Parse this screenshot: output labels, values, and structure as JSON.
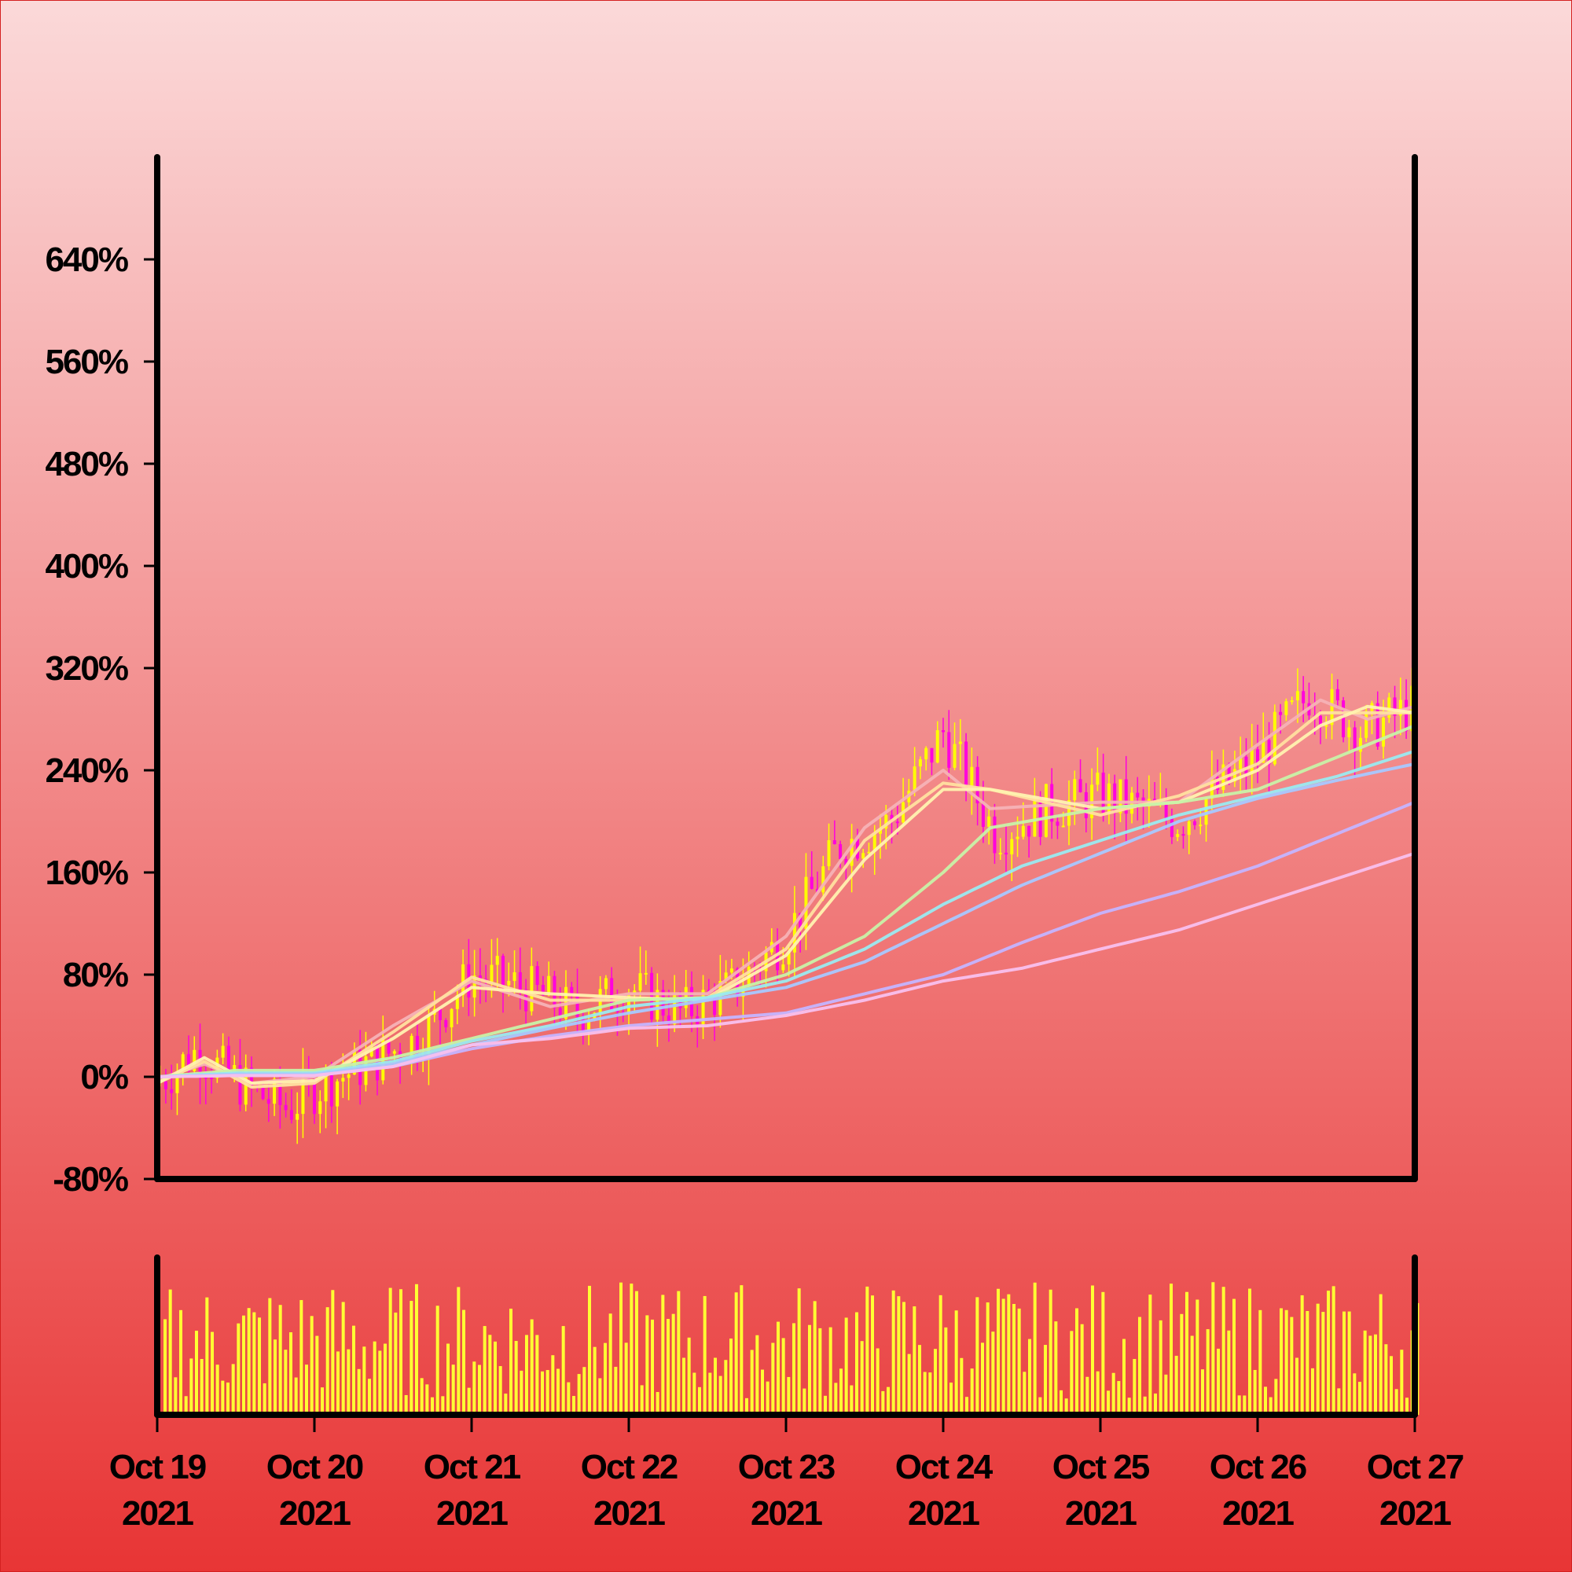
{
  "chart_data": {
    "type": "candlestick",
    "title": "",
    "xlabel": "",
    "ylabel": "",
    "y_unit": "%",
    "ylim": [
      -80,
      720
    ],
    "y_ticks": [
      "-80%",
      "0%",
      "80%",
      "160%",
      "240%",
      "320%",
      "400%",
      "480%",
      "560%",
      "640%"
    ],
    "y_tick_values": [
      -80,
      0,
      80,
      160,
      240,
      320,
      400,
      480,
      560,
      640
    ],
    "x_range": [
      "2021-10-19",
      "2021-10-27"
    ],
    "x_ticks": [
      {
        "date": "2021-10-19",
        "line1": "Oct 19",
        "line2": "2021"
      },
      {
        "date": "2021-10-20",
        "line1": "Oct 20",
        "line2": "2021"
      },
      {
        "date": "2021-10-21",
        "line1": "Oct 21",
        "line2": "2021"
      },
      {
        "date": "2021-10-22",
        "line1": "Oct 22",
        "line2": "2021"
      },
      {
        "date": "2021-10-23",
        "line1": "Oct 23",
        "line2": "2021"
      },
      {
        "date": "2021-10-24",
        "line1": "Oct 24",
        "line2": "2021"
      },
      {
        "date": "2021-10-25",
        "line1": "Oct 25",
        "line2": "2021"
      },
      {
        "date": "2021-10-26",
        "line1": "Oct 26",
        "line2": "2021"
      },
      {
        "date": "2021-10-27",
        "line1": "Oct 27",
        "line2": "2021"
      }
    ],
    "grid": false,
    "legend": "none",
    "price_close_path": [
      {
        "date": "2021-10-19",
        "value": -5
      },
      {
        "date": "2021-10-19T06:00",
        "value": 20
      },
      {
        "date": "2021-10-19T14:00",
        "value": -10
      },
      {
        "date": "2021-10-19T20:00",
        "value": -25
      },
      {
        "date": "2021-10-20",
        "value": -10
      },
      {
        "date": "2021-10-20T08:00",
        "value": 10
      },
      {
        "date": "2021-10-20T16:00",
        "value": 30
      },
      {
        "date": "2021-10-21",
        "value": 80
      },
      {
        "date": "2021-10-21T08:00",
        "value": 70
      },
      {
        "date": "2021-10-21T16:00",
        "value": 50
      },
      {
        "date": "2021-10-22",
        "value": 70
      },
      {
        "date": "2021-10-22T08:00",
        "value": 50
      },
      {
        "date": "2021-10-22T16:00",
        "value": 70
      },
      {
        "date": "2021-10-23",
        "value": 110
      },
      {
        "date": "2021-10-23T08:00",
        "value": 180
      },
      {
        "date": "2021-10-23T16:00",
        "value": 200
      },
      {
        "date": "2021-10-24",
        "value": 270
      },
      {
        "date": "2021-10-24T08:00",
        "value": 190
      },
      {
        "date": "2021-10-24T16:00",
        "value": 210
      },
      {
        "date": "2021-10-25",
        "value": 220
      },
      {
        "date": "2021-10-25T12:00",
        "value": 200
      },
      {
        "date": "2021-10-26",
        "value": 250
      },
      {
        "date": "2021-10-26T08:00",
        "value": 300
      },
      {
        "date": "2021-10-26T16:00",
        "value": 270
      },
      {
        "date": "2021-10-27",
        "value": 290
      }
    ],
    "moving_averages": [
      {
        "color": "#f6b2b6",
        "values": [
          [
            0,
            -2
          ],
          [
            0.3,
            10
          ],
          [
            0.6,
            -5
          ],
          [
            1,
            0
          ],
          [
            1.5,
            40
          ],
          [
            2,
            75
          ],
          [
            2.5,
            55
          ],
          [
            3,
            65
          ],
          [
            3.5,
            65
          ],
          [
            4,
            110
          ],
          [
            4.5,
            195
          ],
          [
            5,
            240
          ],
          [
            5.3,
            210
          ],
          [
            6,
            215
          ],
          [
            6.5,
            215
          ],
          [
            7,
            260
          ],
          [
            7.4,
            295
          ],
          [
            7.7,
            280
          ],
          [
            8,
            290
          ]
        ]
      },
      {
        "color": "#ffe0a0",
        "values": [
          [
            0,
            -5
          ],
          [
            0.3,
            12
          ],
          [
            0.6,
            -8
          ],
          [
            1,
            -5
          ],
          [
            1.5,
            35
          ],
          [
            2,
            78
          ],
          [
            2.5,
            60
          ],
          [
            3,
            60
          ],
          [
            3.5,
            62
          ],
          [
            4,
            100
          ],
          [
            4.5,
            185
          ],
          [
            5,
            230
          ],
          [
            5.3,
            225
          ],
          [
            6,
            205
          ],
          [
            6.5,
            220
          ],
          [
            7,
            245
          ],
          [
            7.4,
            285
          ],
          [
            7.7,
            285
          ],
          [
            8,
            285
          ]
        ]
      },
      {
        "color": "#fff2b0",
        "values": [
          [
            0,
            -5
          ],
          [
            0.3,
            15
          ],
          [
            0.6,
            -5
          ],
          [
            1,
            -3
          ],
          [
            1.5,
            30
          ],
          [
            2,
            70
          ],
          [
            2.5,
            65
          ],
          [
            3,
            62
          ],
          [
            3.5,
            60
          ],
          [
            4,
            95
          ],
          [
            4.5,
            170
          ],
          [
            5,
            225
          ],
          [
            5.3,
            225
          ],
          [
            6,
            210
          ],
          [
            6.5,
            215
          ],
          [
            7,
            240
          ],
          [
            7.4,
            275
          ],
          [
            7.7,
            290
          ],
          [
            8,
            285
          ]
        ]
      },
      {
        "color": "#c8f2a8",
        "values": [
          [
            0,
            0
          ],
          [
            0.5,
            5
          ],
          [
            1,
            5
          ],
          [
            1.5,
            15
          ],
          [
            2,
            30
          ],
          [
            2.5,
            45
          ],
          [
            3,
            60
          ],
          [
            3.5,
            62
          ],
          [
            4,
            80
          ],
          [
            4.5,
            110
          ],
          [
            5,
            160
          ],
          [
            5.3,
            195
          ],
          [
            6,
            210
          ],
          [
            6.5,
            215
          ],
          [
            7,
            225
          ],
          [
            7.5,
            250
          ],
          [
            8,
            275
          ]
        ]
      },
      {
        "color": "#9aeaf0",
        "values": [
          [
            0,
            0
          ],
          [
            0.5,
            3
          ],
          [
            1,
            3
          ],
          [
            1.5,
            12
          ],
          [
            2,
            28
          ],
          [
            2.5,
            40
          ],
          [
            3,
            55
          ],
          [
            3.5,
            62
          ],
          [
            4,
            75
          ],
          [
            4.5,
            100
          ],
          [
            5,
            135
          ],
          [
            5.5,
            165
          ],
          [
            6,
            185
          ],
          [
            6.5,
            205
          ],
          [
            7,
            220
          ],
          [
            7.5,
            235
          ],
          [
            8,
            255
          ]
        ]
      },
      {
        "color": "#a8c8ff",
        "values": [
          [
            0,
            0
          ],
          [
            0.5,
            2
          ],
          [
            1,
            2
          ],
          [
            1.5,
            10
          ],
          [
            2,
            25
          ],
          [
            2.5,
            38
          ],
          [
            3,
            50
          ],
          [
            3.5,
            60
          ],
          [
            4,
            70
          ],
          [
            4.5,
            90
          ],
          [
            5,
            120
          ],
          [
            5.5,
            150
          ],
          [
            6,
            175
          ],
          [
            6.5,
            200
          ],
          [
            7,
            218
          ],
          [
            7.5,
            232
          ],
          [
            8,
            245
          ]
        ]
      },
      {
        "color": "#c4b4ff",
        "values": [
          [
            0,
            0
          ],
          [
            0.5,
            1
          ],
          [
            1,
            1
          ],
          [
            1.5,
            8
          ],
          [
            2,
            22
          ],
          [
            2.5,
            32
          ],
          [
            3,
            40
          ],
          [
            3.5,
            45
          ],
          [
            4,
            50
          ],
          [
            4.5,
            65
          ],
          [
            5,
            80
          ],
          [
            5.5,
            105
          ],
          [
            6,
            128
          ],
          [
            6.5,
            145
          ],
          [
            7,
            165
          ],
          [
            7.5,
            190
          ],
          [
            8,
            215
          ]
        ]
      },
      {
        "color": "#f8c0ee",
        "values": [
          [
            0,
            0
          ],
          [
            0.5,
            1
          ],
          [
            1,
            1
          ],
          [
            1.5,
            8
          ],
          [
            2,
            25
          ],
          [
            2.5,
            30
          ],
          [
            3,
            38
          ],
          [
            3.5,
            40
          ],
          [
            4,
            48
          ],
          [
            4.5,
            60
          ],
          [
            5,
            75
          ],
          [
            5.5,
            85
          ],
          [
            6,
            100
          ],
          [
            6.5,
            115
          ],
          [
            7,
            135
          ],
          [
            7.5,
            155
          ],
          [
            8,
            175
          ]
        ]
      }
    ],
    "volume_axis": "no tick labels",
    "colors": {
      "up_candle": "#ffff00",
      "down_candle": "#ff00dd",
      "volume_bar": "#ffff33",
      "background_top": "#fbd9d9",
      "background_bottom": "#e83535",
      "axis": "#000000"
    }
  }
}
